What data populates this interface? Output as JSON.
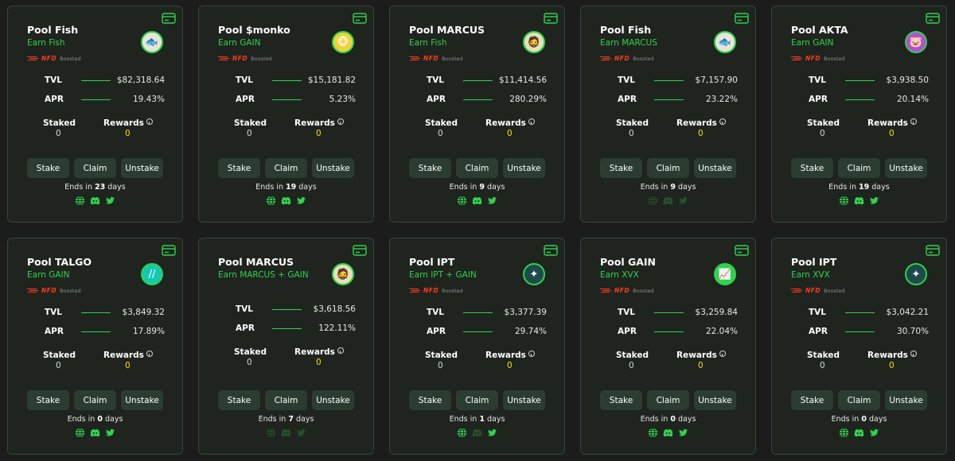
{
  "labels": {
    "boost_tag": "NFD",
    "boosted": "Boosted",
    "tvl": "TVL",
    "apr": "APR",
    "staked": "Staked",
    "rewards": "Rewards",
    "stake": "Stake",
    "claim": "Claim",
    "unstake": "Unstake",
    "ends_in": "Ends in",
    "days": "days"
  },
  "colors": {
    "background": "#1b1c1b",
    "card": "#1f241f",
    "accent_green": "#2fd34c",
    "reward_yellow": "#f5e000",
    "boost_red": "#ff3a1e",
    "button": "#2b3d30"
  },
  "pools": [
    {
      "title": "Pool Fish",
      "earn": "Earn Fish",
      "token_icon": "fish-token-icon",
      "token_bg": "#e8e4d8",
      "token_glyph": "🐟",
      "boosted": true,
      "tvl": "$82,318.64",
      "apr": "19.43%",
      "staked": "0",
      "rewards": "0",
      "ends_days": "23",
      "socials": {
        "web": true,
        "discord": true,
        "twitter": true
      }
    },
    {
      "title": "Pool $monko",
      "earn": "Earn GAIN",
      "token_icon": "monko-token-icon",
      "token_bg": "#f2d23c",
      "token_glyph": "🐵",
      "boosted": true,
      "tvl": "$15,181.82",
      "apr": "5.23%",
      "staked": "0",
      "rewards": "0",
      "ends_days": "19",
      "socials": {
        "web": true,
        "discord": true,
        "twitter": true
      }
    },
    {
      "title": "Pool MARCUS",
      "earn": "Earn Fish",
      "token_icon": "marcus-token-icon",
      "token_bg": "#e9dfb8",
      "token_glyph": "🧔",
      "boosted": true,
      "tvl": "$11,414.56",
      "apr": "280.29%",
      "staked": "0",
      "rewards": "0",
      "ends_days": "9",
      "socials": {
        "web": true,
        "discord": true,
        "twitter": true
      }
    },
    {
      "title": "Pool Fish",
      "earn": "Earn MARCUS",
      "token_icon": "fish-token-icon",
      "token_bg": "#e8e4d8",
      "token_glyph": "🐟",
      "boosted": true,
      "tvl": "$7,157.90",
      "apr": "23.22%",
      "staked": "0",
      "rewards": "0",
      "ends_days": "9",
      "socials": {
        "web": false,
        "discord": false,
        "twitter": false
      }
    },
    {
      "title": "Pool AKTA",
      "earn": "Earn GAIN",
      "token_icon": "akta-token-icon",
      "token_bg": "#b44ed6",
      "token_glyph": "🐷",
      "boosted": true,
      "tvl": "$3,938.50",
      "apr": "20.14%",
      "staked": "0",
      "rewards": "0",
      "ends_days": "19",
      "socials": {
        "web": true,
        "discord": true,
        "twitter": true
      }
    },
    {
      "title": "Pool TALGO",
      "earn": "Earn GAIN",
      "token_icon": "talgo-token-icon",
      "token_bg": "#14c8b0",
      "token_glyph": "//",
      "boosted": true,
      "tvl": "$3,849.32",
      "apr": "17.89%",
      "staked": "0",
      "rewards": "0",
      "ends_days": "0",
      "socials": {
        "web": true,
        "discord": true,
        "twitter": true
      }
    },
    {
      "title": "Pool MARCUS",
      "earn": "Earn MARCUS + GAIN",
      "token_icon": "marcus-token-icon",
      "token_bg": "#e9dfb8",
      "token_glyph": "🧔",
      "boosted": false,
      "tvl": "$3,618.56",
      "apr": "122.11%",
      "staked": "0",
      "rewards": "0",
      "ends_days": "7",
      "socials": {
        "web": false,
        "discord": false,
        "twitter": false
      }
    },
    {
      "title": "Pool IPT",
      "earn": "Earn IPT + GAIN",
      "token_icon": "ipt-token-icon",
      "token_bg": "#1d4a4a",
      "token_glyph": "✦",
      "boosted": true,
      "tvl": "$3,377.39",
      "apr": "29.74%",
      "staked": "0",
      "rewards": "0",
      "ends_days": "1",
      "socials": {
        "web": true,
        "discord": false,
        "twitter": true
      }
    },
    {
      "title": "Pool GAIN",
      "earn": "Earn XVX",
      "token_icon": "gain-token-icon",
      "token_bg": "#2fd34c",
      "token_glyph": "📈",
      "boosted": true,
      "tvl": "$3,259.84",
      "apr": "22.04%",
      "staked": "0",
      "rewards": "0",
      "ends_days": "0",
      "socials": {
        "web": true,
        "discord": true,
        "twitter": true
      }
    },
    {
      "title": "Pool IPT",
      "earn": "Earn XVX",
      "token_icon": "ipt-token-icon",
      "token_bg": "#1d4a4a",
      "token_glyph": "✦",
      "boosted": true,
      "tvl": "$3,042.21",
      "apr": "30.70%",
      "staked": "0",
      "rewards": "0",
      "ends_days": "0",
      "socials": {
        "web": true,
        "discord": true,
        "twitter": true
      }
    }
  ]
}
